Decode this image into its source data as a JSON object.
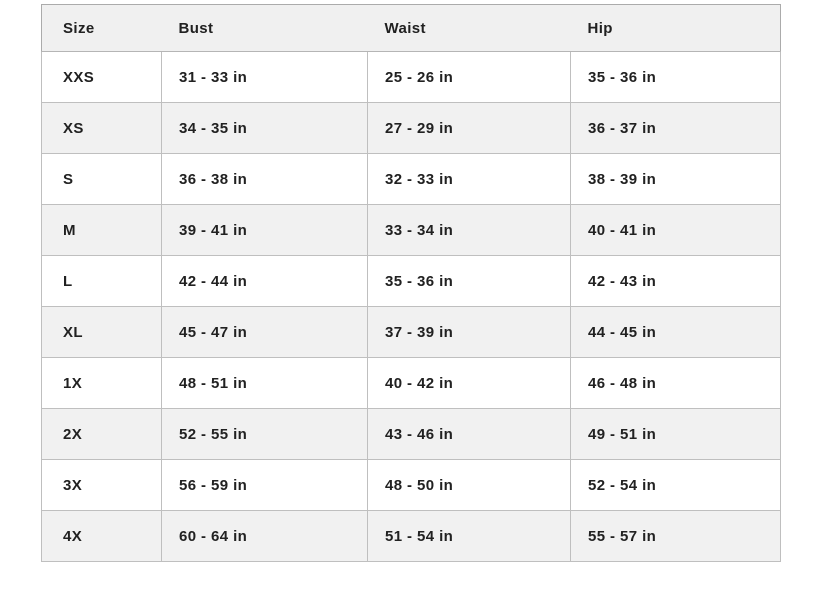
{
  "table": {
    "columns": [
      {
        "key": "size",
        "label": "Size"
      },
      {
        "key": "bust",
        "label": "Bust"
      },
      {
        "key": "waist",
        "label": "Waist"
      },
      {
        "key": "hip",
        "label": "Hip"
      }
    ],
    "rows": [
      {
        "size": "XXS",
        "bust": "31 - 33 in",
        "waist": "25 - 26 in",
        "hip": "35 - 36 in"
      },
      {
        "size": "XS",
        "bust": "34 - 35 in",
        "waist": "27 - 29 in",
        "hip": "36 - 37 in"
      },
      {
        "size": "S",
        "bust": "36 - 38 in",
        "waist": "32 - 33 in",
        "hip": "38 - 39 in"
      },
      {
        "size": "M",
        "bust": "39 - 41 in",
        "waist": "33 - 34 in",
        "hip": "40 - 41 in"
      },
      {
        "size": "L",
        "bust": "42 - 44 in",
        "waist": "35 - 36 in",
        "hip": "42 - 43 in"
      },
      {
        "size": "XL",
        "bust": "45 - 47 in",
        "waist": "37 - 39 in",
        "hip": "44 - 45 in"
      },
      {
        "size": "1X",
        "bust": "48 - 51 in",
        "waist": "40 - 42 in",
        "hip": "46 - 48 in"
      },
      {
        "size": "2X",
        "bust": "52 - 55 in",
        "waist": "43 - 46 in",
        "hip": "49 - 51 in"
      },
      {
        "size": "3X",
        "bust": "56 - 59 in",
        "waist": "48 - 50 in",
        "hip": "52 - 54 in"
      },
      {
        "size": "4X",
        "bust": "60 - 64 in",
        "waist": "51 - 54 in",
        "hip": "55 - 57 in"
      }
    ]
  },
  "colors": {
    "header_background": "#f0f0f0",
    "row_stripe_background": "#f1f1f1",
    "border": "#bfbfbf",
    "text": "#212121"
  }
}
